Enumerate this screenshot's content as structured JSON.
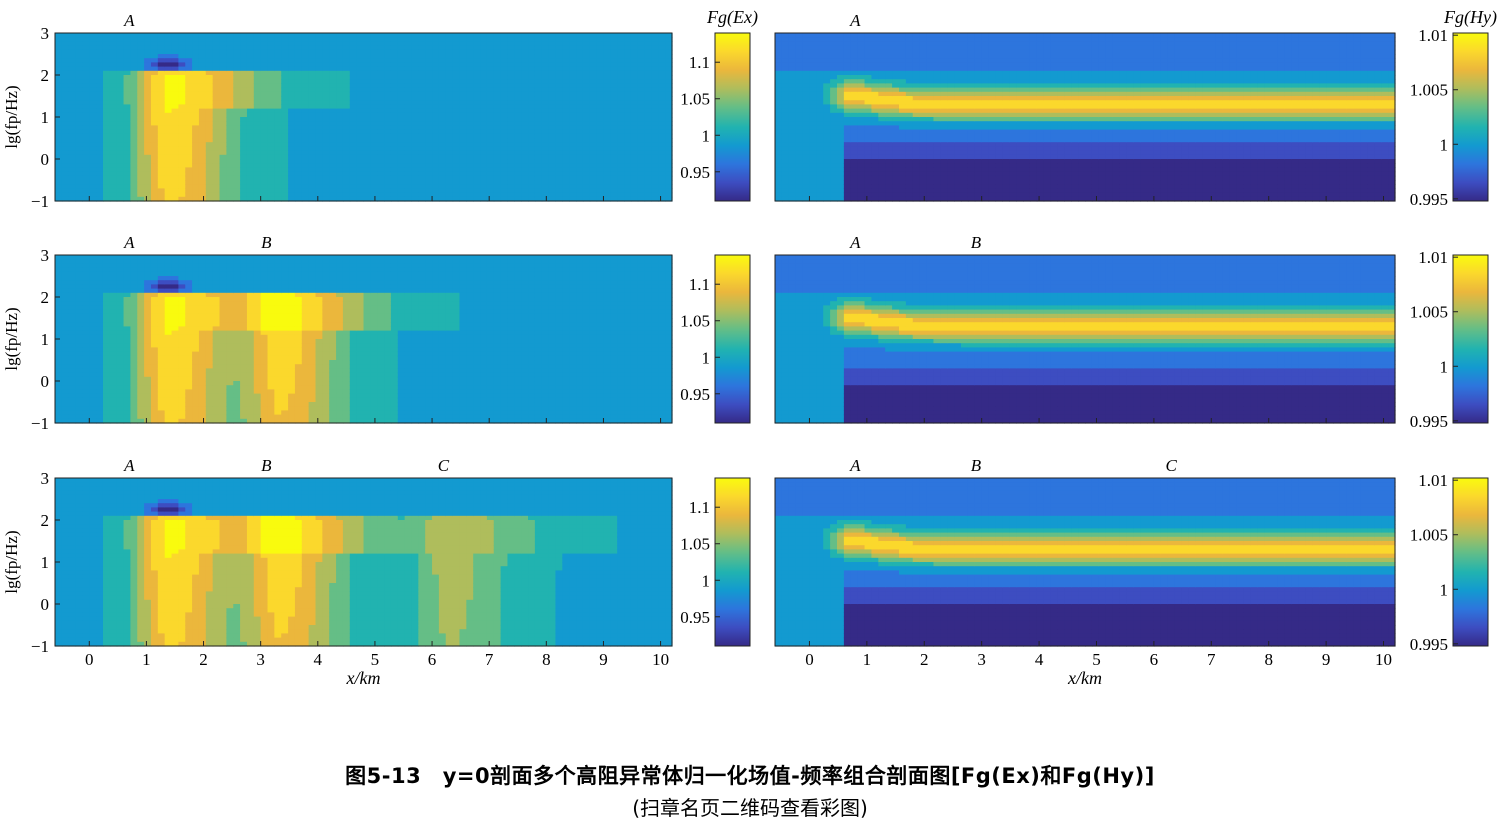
{
  "caption": {
    "title": "图5-13　y=0剖面多个高阻异常体归一化场值-频率组合剖面图[Fg(Ex)和Fg(Hy)]",
    "note": "(扫章名页二维码查看彩图)"
  },
  "chart_data": [
    {
      "type": "heatmap",
      "panel": "left-row1",
      "ylabel": "lg(fp/Hz)",
      "xlabel": "",
      "xlim": [
        -0.6,
        10.2
      ],
      "ylim": [
        -1,
        3
      ],
      "yticks": [
        "−1",
        "0",
        "1",
        "2",
        "3"
      ],
      "xticks": [],
      "colorbar_label": "Fg(Ex)",
      "clim": [
        0.91,
        1.14
      ],
      "colorbar_ticks": [
        "0.95",
        "1",
        "1.05",
        "1.1"
      ],
      "markers": [
        {
          "label": "A",
          "x": 0.7
        }
      ],
      "anomalies": [
        {
          "x": 1.4,
          "peak": 1.12
        }
      ],
      "background": 1.0
    },
    {
      "type": "heatmap",
      "panel": "right-row1",
      "xlim": [
        -0.6,
        10.2
      ],
      "ylim": [
        -1,
        3
      ],
      "colorbar_label": "Fg(Hy)",
      "clim": [
        0.9948,
        1.0102
      ],
      "colorbar_ticks": [
        "0.995",
        "1",
        "1.005",
        "1.01"
      ],
      "markers": [
        {
          "label": "A",
          "x": 0.8
        }
      ],
      "band_peak": 1.008,
      "low_value": 0.9955
    },
    {
      "type": "heatmap",
      "panel": "left-row2",
      "ylabel": "lg(fp/Hz)",
      "xlim": [
        -0.6,
        10.2
      ],
      "ylim": [
        -1,
        3
      ],
      "yticks": [
        "−1",
        "0",
        "1",
        "2",
        "3"
      ],
      "colorbar_ticks": [
        "0.95",
        "1",
        "1.05",
        "1.1"
      ],
      "clim": [
        0.91,
        1.14
      ],
      "markers": [
        {
          "label": "A",
          "x": 0.7
        },
        {
          "label": "B",
          "x": 3.1
        }
      ],
      "anomalies": [
        {
          "x": 1.4,
          "peak": 1.12
        },
        {
          "x": 3.35,
          "peak": 1.11
        }
      ]
    },
    {
      "type": "heatmap",
      "panel": "right-row2",
      "xlim": [
        -0.6,
        10.2
      ],
      "ylim": [
        -1,
        3
      ],
      "colorbar_ticks": [
        "0.995",
        "1",
        "1.005",
        "1.01"
      ],
      "clim": [
        0.9948,
        1.0102
      ],
      "markers": [
        {
          "label": "A",
          "x": 0.8
        },
        {
          "label": "B",
          "x": 2.9
        }
      ],
      "band_peak": 1.008,
      "low_value": 0.996
    },
    {
      "type": "heatmap",
      "panel": "left-row3",
      "ylabel": "lg(fp/Hz)",
      "xlabel": "x/km",
      "xlim": [
        -0.6,
        10.2
      ],
      "ylim": [
        -1,
        3
      ],
      "yticks": [
        "−1",
        "0",
        "1",
        "2",
        "3"
      ],
      "xticks": [
        "0",
        "1",
        "2",
        "3",
        "4",
        "5",
        "6",
        "7",
        "8",
        "9",
        "10"
      ],
      "colorbar_ticks": [
        "0.95",
        "1",
        "1.05",
        "1.1"
      ],
      "clim": [
        0.91,
        1.14
      ],
      "markers": [
        {
          "label": "A",
          "x": 0.7
        },
        {
          "label": "B",
          "x": 3.1
        },
        {
          "label": "C",
          "x": 6.2
        }
      ],
      "anomalies": [
        {
          "x": 1.4,
          "peak": 1.12
        },
        {
          "x": 3.35,
          "peak": 1.11
        },
        {
          "x": 6.3,
          "peak": 1.06
        }
      ]
    },
    {
      "type": "heatmap",
      "panel": "right-row3",
      "xlabel": "x/km",
      "xlim": [
        -0.6,
        10.2
      ],
      "ylim": [
        -1,
        3
      ],
      "xticks": [
        "0",
        "1",
        "2",
        "3",
        "4",
        "5",
        "6",
        "7",
        "8",
        "9",
        "10"
      ],
      "colorbar_ticks": [
        "0.995",
        "1",
        "1.005",
        "1.01"
      ],
      "clim": [
        0.9948,
        1.0102
      ],
      "markers": [
        {
          "label": "A",
          "x": 0.8
        },
        {
          "label": "B",
          "x": 2.9
        },
        {
          "label": "C",
          "x": 6.3
        }
      ],
      "band_peak": 1.008,
      "low_value": 0.9955
    }
  ],
  "colors": {
    "parula": [
      "#352a87",
      "#3d4dc1",
      "#2d75dd",
      "#139ad0",
      "#21b3b0",
      "#65be86",
      "#afbd5c",
      "#ebb73c",
      "#fbd82c",
      "#f9fb0e"
    ]
  }
}
